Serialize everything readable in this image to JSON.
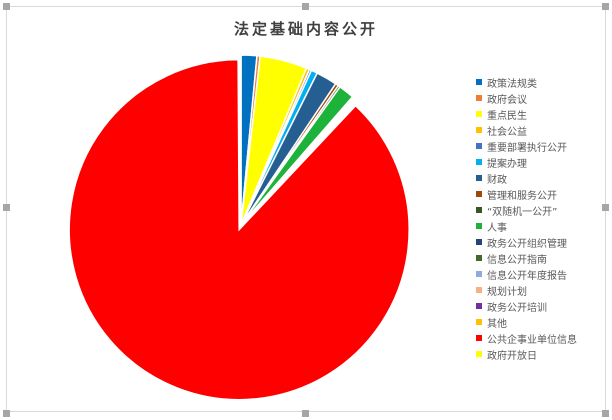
{
  "chart_data": {
    "type": "pie",
    "title": "法定基础内容公开",
    "legend_position": "right",
    "slices": [
      {
        "name": "政策法规类",
        "value": 1.5,
        "color": "#0070C0"
      },
      {
        "name": "政府会议",
        "value": 0.3,
        "color": "#ED7D31"
      },
      {
        "name": "重点民生",
        "value": 4.5,
        "color": "#FFFF00"
      },
      {
        "name": "社会公益",
        "value": 0.3,
        "color": "#FFC000"
      },
      {
        "name": "重要部署执行公开",
        "value": 0.2,
        "color": "#4472C4"
      },
      {
        "name": "提案办理",
        "value": 0.6,
        "color": "#00B0F0"
      },
      {
        "name": "财政",
        "value": 2.0,
        "color": "#255E91"
      },
      {
        "name": "管理和服务公开",
        "value": 0.3,
        "color": "#9E480E"
      },
      {
        "name": "“双随机一公开”",
        "value": 0.2,
        "color": "#375623"
      },
      {
        "name": "人事",
        "value": 1.5,
        "color": "#1DB33A"
      },
      {
        "name": "政务公开组织管理",
        "value": 0.1,
        "color": "#264478"
      },
      {
        "name": "信息公开指南",
        "value": 0.1,
        "color": "#43682B"
      },
      {
        "name": "信息公开年度报告",
        "value": 0.1,
        "color": "#8FAADC"
      },
      {
        "name": "规划计划",
        "value": 0.1,
        "color": "#F4B183"
      },
      {
        "name": "政务公开培训",
        "value": 0.1,
        "color": "#7030A0"
      },
      {
        "name": "其他",
        "value": 0.1,
        "color": "#FFC000"
      },
      {
        "name": "公共企事业单位信息",
        "value": 87.9,
        "color": "#FF0000"
      },
      {
        "name": "政府开放日",
        "value": 0.1,
        "color": "#FFFF00"
      }
    ]
  }
}
